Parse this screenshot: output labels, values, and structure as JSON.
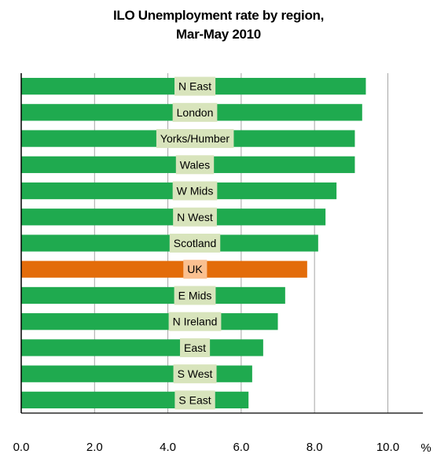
{
  "chart_data": {
    "type": "bar",
    "orientation": "horizontal",
    "title_lines": [
      "ILO Unemployment rate by region,",
      "Mar-May 2010"
    ],
    "categories": [
      "N East",
      "London",
      "Yorks/Humber",
      "Wales",
      "W Mids",
      "N West",
      "Scotland",
      "UK",
      "E Mids",
      "N Ireland",
      "East",
      "S West",
      "S East"
    ],
    "values": [
      9.4,
      9.3,
      9.1,
      9.1,
      8.6,
      8.3,
      8.1,
      7.8,
      7.2,
      7.0,
      6.6,
      6.3,
      6.2
    ],
    "highlight_category": "UK",
    "x_ticks": [
      "0.0",
      "2.0",
      "4.0",
      "6.0",
      "8.0",
      "10.0"
    ],
    "x_unit": "%",
    "xlim": [
      0,
      10
    ],
    "grid": true,
    "colors": {
      "bar": "#1faa4f",
      "highlight_bar": "#e36c0a",
      "label_bg": "#d8e4bc",
      "highlight_label_bg": "#fac090",
      "grid": "#a6a6a6",
      "axis": "#000000"
    }
  }
}
